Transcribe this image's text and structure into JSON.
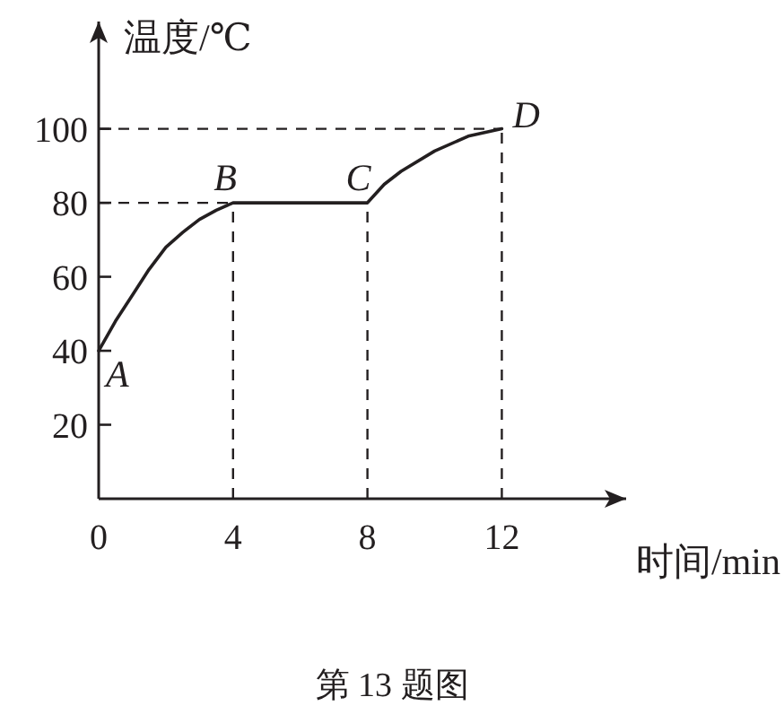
{
  "chart_data": {
    "type": "line",
    "xlabel": "时间/min",
    "ylabel": "温度/℃",
    "x": [
      0,
      0.5,
      1,
      1.5,
      2,
      2.5,
      3,
      3.5,
      4,
      8,
      8.5,
      9,
      10,
      11,
      12
    ],
    "values": [
      40,
      48,
      55,
      62,
      68,
      72,
      75.5,
      78,
      80,
      80,
      85,
      88.5,
      94,
      98,
      100
    ],
    "color": "#231f20",
    "line_style": "solid",
    "marker": "none",
    "xlim": [
      0,
      15.7
    ],
    "ylim": [
      0,
      129
    ],
    "xticks": [
      0,
      4,
      8,
      12
    ],
    "yticks": [
      20,
      40,
      60,
      80,
      100
    ],
    "ref_lines": [
      {
        "axis": "y",
        "value": 100,
        "label": null,
        "line_style": "dashed"
      },
      {
        "axis": "y",
        "value": 80,
        "label": null,
        "line_style": "dashed"
      },
      {
        "axis": "x",
        "value": 4,
        "label": null,
        "line_style": "dashed"
      },
      {
        "axis": "x",
        "value": 8,
        "label": null,
        "line_style": "dashed"
      },
      {
        "axis": "x",
        "value": 12,
        "label": null,
        "line_style": "dashed"
      }
    ],
    "annotations": [
      {
        "text": "A",
        "x": 0,
        "y": 40
      },
      {
        "text": "B",
        "x": 4,
        "y": 80
      },
      {
        "text": "C",
        "x": 8,
        "y": 80
      },
      {
        "text": "D",
        "x": 12,
        "y": 100
      },
      "第 13 题图"
    ]
  }
}
